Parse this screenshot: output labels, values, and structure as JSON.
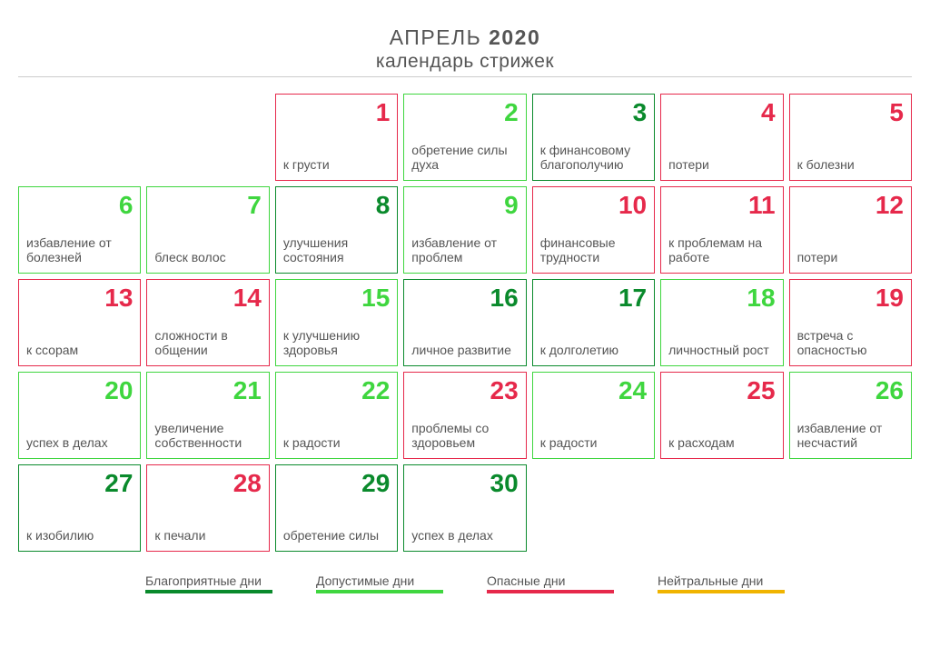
{
  "header": {
    "month": "АПРЕЛЬ",
    "year": "2020",
    "subtitle": "календарь стрижек"
  },
  "colors": {
    "favorable": {
      "border": "#0a8a2c",
      "num": "#0a8a2c"
    },
    "acceptable": {
      "border": "#3fd63f",
      "num": "#3fd63f"
    },
    "dangerous": {
      "border": "#e6294b",
      "num": "#e6294b"
    },
    "neutral": {
      "border": "#f0b400",
      "num": "#f0b400"
    }
  },
  "days": [
    {
      "blank": true
    },
    {
      "blank": true
    },
    {
      "n": "1",
      "kind": "dangerous",
      "desc": "к грусти"
    },
    {
      "n": "2",
      "kind": "acceptable",
      "desc": "обретение силы духа"
    },
    {
      "n": "3",
      "kind": "favorable",
      "desc": "к финансовому благополучию"
    },
    {
      "n": "4",
      "kind": "dangerous",
      "desc": "потери"
    },
    {
      "n": "5",
      "kind": "dangerous",
      "desc": "к болезни"
    },
    {
      "n": "6",
      "kind": "acceptable",
      "desc": "избавление от болезней"
    },
    {
      "n": "7",
      "kind": "acceptable",
      "desc": "блеск волос"
    },
    {
      "n": "8",
      "kind": "favorable",
      "desc": "улучшения состояния"
    },
    {
      "n": "9",
      "kind": "acceptable",
      "desc": "избавление от проблем"
    },
    {
      "n": "10",
      "kind": "dangerous",
      "desc": "финансовые трудности"
    },
    {
      "n": "11",
      "kind": "dangerous",
      "desc": "к проблемам на работе"
    },
    {
      "n": "12",
      "kind": "dangerous",
      "desc": "потери"
    },
    {
      "n": "13",
      "kind": "dangerous",
      "desc": "к ссорам"
    },
    {
      "n": "14",
      "kind": "dangerous",
      "desc": "сложности в общении"
    },
    {
      "n": "15",
      "kind": "acceptable",
      "desc": "к улучшению здоровья"
    },
    {
      "n": "16",
      "kind": "favorable",
      "desc": "личное развитие"
    },
    {
      "n": "17",
      "kind": "favorable",
      "desc": "к долголетию"
    },
    {
      "n": "18",
      "kind": "acceptable",
      "desc": "личностный рост"
    },
    {
      "n": "19",
      "kind": "dangerous",
      "desc": "встреча с опасностью"
    },
    {
      "n": "20",
      "kind": "acceptable",
      "desc": "успех в делах"
    },
    {
      "n": "21",
      "kind": "acceptable",
      "desc": "увеличение собственности"
    },
    {
      "n": "22",
      "kind": "acceptable",
      "desc": "к радости"
    },
    {
      "n": "23",
      "kind": "dangerous",
      "desc": "проблемы со здоровьем"
    },
    {
      "n": "24",
      "kind": "acceptable",
      "desc": "к радости"
    },
    {
      "n": "25",
      "kind": "dangerous",
      "desc": "к расходам"
    },
    {
      "n": "26",
      "kind": "acceptable",
      "desc": "избавление от несчастий"
    },
    {
      "n": "27",
      "kind": "favorable",
      "desc": "к изобилию"
    },
    {
      "n": "28",
      "kind": "dangerous",
      "desc": "к печали"
    },
    {
      "n": "29",
      "kind": "favorable",
      "desc": "обретение силы"
    },
    {
      "n": "30",
      "kind": "favorable",
      "desc": "успех в делах"
    }
  ],
  "legend": [
    {
      "label": "Благоприятные дни",
      "kind": "favorable"
    },
    {
      "label": "Допустимые дни",
      "kind": "acceptable"
    },
    {
      "label": "Опасные дни",
      "kind": "dangerous"
    },
    {
      "label": "Нейтральные дни",
      "kind": "neutral"
    }
  ]
}
